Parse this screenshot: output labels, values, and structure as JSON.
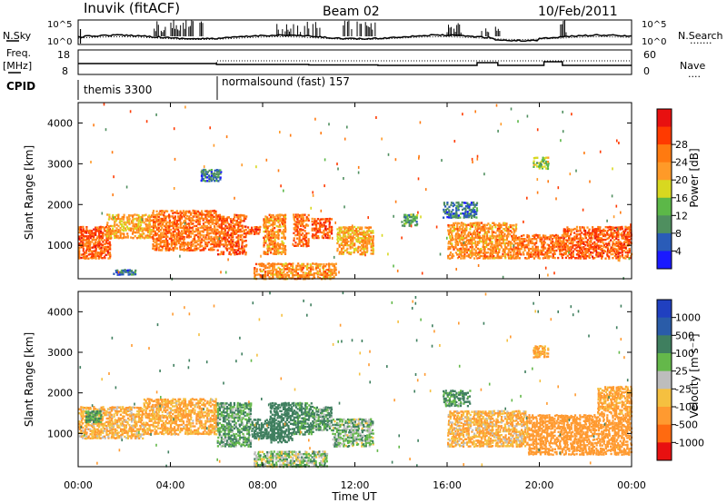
{
  "header": {
    "station": "Inuvik (fitACF)",
    "beam": "Beam 02",
    "date": "10/Feb/2011"
  },
  "left_labels": {
    "nsky": "N.Sky",
    "freq": "Freq.",
    "freq_unit": "[MHz]",
    "cpid": "CPID"
  },
  "right_labels": {
    "nsearch": "N.Search",
    "nsearch_dots": "·······",
    "nave": "Nave",
    "nave_dots": "····"
  },
  "noise_panel": {
    "left_ticks": [
      "10^5",
      "10^0"
    ],
    "right_ticks": [
      "10^5",
      "10^0"
    ]
  },
  "freq_panel": {
    "left_ticks": [
      "18",
      "8"
    ],
    "right_ticks": [
      "60",
      "0"
    ]
  },
  "cpid_panel": {
    "segments": [
      {
        "label": "themis 3300",
        "start_hour": 0.0,
        "end_hour": 6.0
      },
      {
        "label": "normalsound (fast) 157",
        "start_hour": 6.0,
        "end_hour": 24.0
      }
    ]
  },
  "power_colorbar": {
    "label": "Power [dB]",
    "ticks": [
      "4",
      "8",
      "12",
      "16",
      "20",
      "24",
      "28"
    ],
    "colors": [
      "#1a1aff",
      "#2a5cb8",
      "#4f8f5f",
      "#5cb848",
      "#d8d820",
      "#ff9a28",
      "#ff7a10",
      "#ff3a00",
      "#e81010"
    ]
  },
  "velocity_colorbar": {
    "label": "Velocity [m s⁻¹]",
    "ticks": [
      "1000",
      "500",
      "100",
      "25",
      "-25",
      "-100",
      "-500",
      "-1000"
    ],
    "colors": [
      "#2040c0",
      "#2a5ca8",
      "#3f7f5f",
      "#64b84a",
      "#bdbdbd",
      "#f5c040",
      "#ff9a30",
      "#ff6a10",
      "#e81010"
    ]
  },
  "chart_data": [
    {
      "type": "heatmap",
      "panel": "power",
      "xlabel": "",
      "ylabel": "Slant Range [km]",
      "xlim_hours": [
        0,
        24
      ],
      "ylim": [
        180,
        4500
      ],
      "yticks": [
        "1000",
        "2000",
        "3000",
        "4000"
      ],
      "blobs": [
        {
          "t0": 0.0,
          "t1": 1.4,
          "r0": 700,
          "r1": 1500,
          "v": 28
        },
        {
          "t0": 1.2,
          "t1": 3.2,
          "r0": 1200,
          "r1": 1800,
          "v": 22
        },
        {
          "t0": 3.2,
          "t1": 6.0,
          "r0": 900,
          "r1": 1900,
          "v": 26
        },
        {
          "t0": 6.0,
          "t1": 7.3,
          "r0": 800,
          "r1": 1800,
          "v": 28
        },
        {
          "t0": 7.3,
          "t1": 7.9,
          "r0": 1300,
          "r1": 1500,
          "v": 28
        },
        {
          "t0": 8.0,
          "t1": 9.0,
          "r0": 800,
          "r1": 1800,
          "v": 24
        },
        {
          "t0": 7.6,
          "t1": 11.2,
          "r0": 200,
          "r1": 600,
          "v": 24
        },
        {
          "t0": 9.3,
          "t1": 10.0,
          "r0": 1000,
          "r1": 1800,
          "v": 26
        },
        {
          "t0": 10.1,
          "t1": 11.0,
          "r0": 1200,
          "r1": 1700,
          "v": 28
        },
        {
          "t0": 11.2,
          "t1": 12.8,
          "r0": 800,
          "r1": 1500,
          "v": 22
        },
        {
          "t0": 14.0,
          "t1": 14.7,
          "r0": 1500,
          "r1": 1800,
          "v": 12
        },
        {
          "t0": 15.8,
          "t1": 17.3,
          "r0": 1700,
          "r1": 2100,
          "v": 8
        },
        {
          "t0": 16.0,
          "t1": 19.0,
          "r0": 700,
          "r1": 1600,
          "v": 24
        },
        {
          "t0": 19.0,
          "t1": 21.0,
          "r0": 700,
          "r1": 1300,
          "v": 26
        },
        {
          "t0": 21.0,
          "t1": 24.0,
          "r0": 700,
          "r1": 1500,
          "v": 28
        },
        {
          "t0": 19.7,
          "t1": 20.4,
          "r0": 2900,
          "r1": 3200,
          "v": 16
        },
        {
          "t0": 5.3,
          "t1": 6.2,
          "r0": 2600,
          "r1": 2900,
          "v": 8
        },
        {
          "t0": 1.5,
          "t1": 2.5,
          "r0": 300,
          "r1": 450,
          "v": 8
        }
      ]
    },
    {
      "type": "heatmap",
      "panel": "velocity",
      "xlabel": "Time UT",
      "ylabel": "Slant Range [km]",
      "xlim_hours": [
        0,
        24
      ],
      "ylim": [
        180,
        4500
      ],
      "yticks": [
        "1000",
        "2000",
        "3000",
        "4000"
      ],
      "xticks": [
        "00:00",
        "04:00",
        "08:00",
        "12:00",
        "16:00",
        "20:00",
        "00:00"
      ],
      "blobs": [
        {
          "t0": 0.0,
          "t1": 2.8,
          "r0": 900,
          "r1": 1700,
          "v": -100
        },
        {
          "t0": 2.8,
          "t1": 6.0,
          "r0": 1000,
          "r1": 1900,
          "v": -120
        },
        {
          "t0": 6.0,
          "t1": 7.5,
          "r0": 700,
          "r1": 1800,
          "v": 100
        },
        {
          "t0": 7.5,
          "t1": 8.5,
          "r0": 900,
          "r1": 1400,
          "v": 200
        },
        {
          "t0": 8.3,
          "t1": 9.3,
          "r0": 800,
          "r1": 1800,
          "v": 300
        },
        {
          "t0": 9.3,
          "t1": 10.2,
          "r0": 1000,
          "r1": 1800,
          "v": 150
        },
        {
          "t0": 10.2,
          "t1": 11.0,
          "r0": 1100,
          "r1": 1700,
          "v": 100
        },
        {
          "t0": 11.0,
          "t1": 12.8,
          "r0": 700,
          "r1": 1400,
          "v": 60
        },
        {
          "t0": 7.6,
          "t1": 10.8,
          "r0": 200,
          "r1": 600,
          "v": 40
        },
        {
          "t0": 16.0,
          "t1": 19.5,
          "r0": 700,
          "r1": 1600,
          "v": -100
        },
        {
          "t0": 19.5,
          "t1": 24.0,
          "r0": 500,
          "r1": 1500,
          "v": -200
        },
        {
          "t0": 15.8,
          "t1": 17.0,
          "r0": 1700,
          "r1": 2100,
          "v": 120
        },
        {
          "t0": 19.7,
          "t1": 20.4,
          "r0": 2900,
          "r1": 3200,
          "v": -150
        },
        {
          "t0": 22.5,
          "t1": 24.0,
          "r0": 1500,
          "r1": 2200,
          "v": -150
        },
        {
          "t0": 0.3,
          "t1": 1.0,
          "r0": 1300,
          "r1": 1600,
          "v": 120
        }
      ]
    }
  ]
}
